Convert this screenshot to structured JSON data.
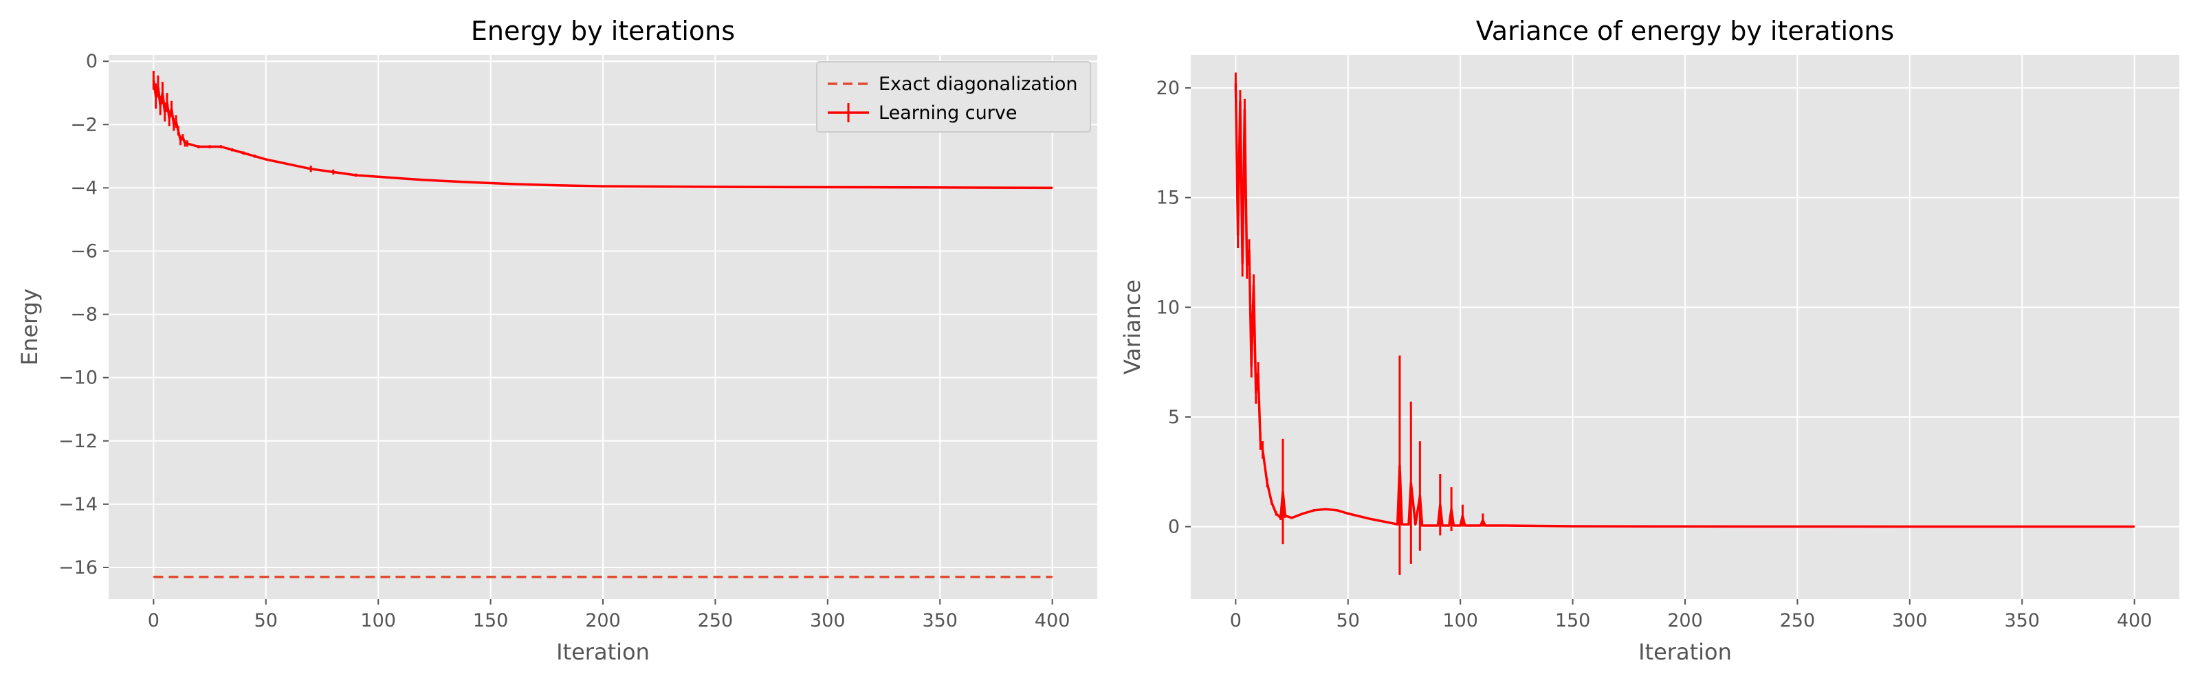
{
  "figure": {
    "background": "#ffffff",
    "panel_bg": "#e5e5e5",
    "grid_color": "#ffffff",
    "line_color": "#ff0000",
    "ref_color": "#e24a33"
  },
  "chart_data": [
    {
      "type": "line",
      "title": "Energy by iterations",
      "xlabel": "Iteration",
      "ylabel": "Energy",
      "xlim": [
        -20,
        420
      ],
      "ylim": [
        -17,
        0.2
      ],
      "xticks": [
        0,
        50,
        100,
        150,
        200,
        250,
        300,
        350,
        400
      ],
      "xtick_labels": [
        "0",
        "50",
        "100",
        "150",
        "200",
        "250",
        "300",
        "350",
        "400"
      ],
      "yticks": [
        0,
        -2,
        -4,
        -6,
        -8,
        -10,
        -12,
        -14,
        -16
      ],
      "ytick_labels": [
        "0",
        "−2",
        "−4",
        "−6",
        "−8",
        "−10",
        "−12",
        "−14",
        "−16"
      ],
      "grid": true,
      "legend": {
        "placement": "top-right",
        "entries": [
          "Exact diagonalization",
          "Learning curve"
        ]
      },
      "series": [
        {
          "name": "Exact diagonalization",
          "style": "dashed",
          "x": [
            0,
            400
          ],
          "y": [
            -16.3,
            -16.3
          ]
        },
        {
          "name": "Learning curve",
          "style": "solid-with-errorbars",
          "x": [
            0,
            1,
            2,
            3,
            4,
            5,
            6,
            7,
            8,
            9,
            10,
            11,
            12,
            13,
            14,
            15,
            20,
            25,
            30,
            35,
            40,
            45,
            50,
            60,
            70,
            80,
            90,
            100,
            110,
            120,
            140,
            160,
            180,
            200,
            250,
            300,
            350,
            400
          ],
          "y": [
            -0.6,
            -1.1,
            -0.8,
            -1.4,
            -1.0,
            -1.6,
            -1.3,
            -1.8,
            -1.5,
            -2.0,
            -1.9,
            -2.2,
            -2.5,
            -2.4,
            -2.6,
            -2.6,
            -2.7,
            -2.7,
            -2.7,
            -2.8,
            -2.9,
            -3.0,
            -3.1,
            -3.25,
            -3.4,
            -3.5,
            -3.6,
            -3.65,
            -3.7,
            -3.75,
            -3.82,
            -3.88,
            -3.92,
            -3.95,
            -3.97,
            -3.98,
            -3.99,
            -4.0
          ],
          "err": [
            0.3,
            0.4,
            0.35,
            0.3,
            0.35,
            0.3,
            0.3,
            0.25,
            0.25,
            0.2,
            0.2,
            0.15,
            0.15,
            0.1,
            0.1,
            0.1,
            0.05,
            0.05,
            0.05,
            0.05,
            0.05,
            0.05,
            0.03,
            0.03,
            0.1,
            0.08,
            0.05,
            0.03,
            0.02,
            0.02,
            0.01,
            0.01,
            0.01,
            0.01,
            0.01,
            0.01,
            0.01,
            0.01
          ]
        }
      ]
    },
    {
      "type": "line",
      "title": "Variance of energy by iterations",
      "xlabel": "Iteration",
      "ylabel": "Variance",
      "xlim": [
        -20,
        420
      ],
      "ylim": [
        -3.3,
        21.5
      ],
      "xticks": [
        0,
        50,
        100,
        150,
        200,
        250,
        300,
        350,
        400
      ],
      "xtick_labels": [
        "0",
        "50",
        "100",
        "150",
        "200",
        "250",
        "300",
        "350",
        "400"
      ],
      "yticks": [
        0,
        5,
        10,
        15,
        20
      ],
      "ytick_labels": [
        "0",
        "5",
        "10",
        "15",
        "20"
      ],
      "grid": true,
      "series": [
        {
          "name": "",
          "style": "solid-with-errorbars",
          "x": [
            0,
            1,
            2,
            3,
            4,
            5,
            6,
            7,
            8,
            9,
            10,
            11,
            12,
            14,
            16,
            18,
            20,
            21,
            22,
            25,
            30,
            35,
            40,
            45,
            50,
            60,
            70,
            72,
            73,
            74,
            77,
            78,
            80,
            82,
            83,
            85,
            90,
            91,
            92,
            95,
            96,
            97,
            100,
            101,
            102,
            105,
            109,
            110,
            111,
            120,
            150,
            200,
            300,
            400
          ],
          "y": [
            20.2,
            13.3,
            19.4,
            12.0,
            19.0,
            11.9,
            12.6,
            7.3,
            11.0,
            6.1,
            7.0,
            3.9,
            3.5,
            2.0,
            1.1,
            0.6,
            0.4,
            1.6,
            0.5,
            0.4,
            0.6,
            0.75,
            0.8,
            0.75,
            0.6,
            0.35,
            0.15,
            0.1,
            2.8,
            0.1,
            0.1,
            2.0,
            0.1,
            1.4,
            0.05,
            0.05,
            0.05,
            1.0,
            0.05,
            0.05,
            0.8,
            0.05,
            0.05,
            0.5,
            0.05,
            0.05,
            0.05,
            0.3,
            0.05,
            0.05,
            0.02,
            0.01,
            0.005,
            0.005
          ],
          "err": [
            0.5,
            0.6,
            0.5,
            0.6,
            0.5,
            0.6,
            0.5,
            0.5,
            0.5,
            0.5,
            0.5,
            0.4,
            0.4,
            0.2,
            0.1,
            0.1,
            0.1,
            2.4,
            0.1,
            0.05,
            0.05,
            0.05,
            0.05,
            0.05,
            0.05,
            0.02,
            0.02,
            0.02,
            5.0,
            0.02,
            0.02,
            3.7,
            0.02,
            2.5,
            0.02,
            0.02,
            0.02,
            1.4,
            0.02,
            0.02,
            1.0,
            0.02,
            0.02,
            0.5,
            0.02,
            0.02,
            0.02,
            0.3,
            0.02,
            0.02,
            0.01,
            0.01,
            0.0,
            0.0
          ]
        }
      ]
    }
  ]
}
